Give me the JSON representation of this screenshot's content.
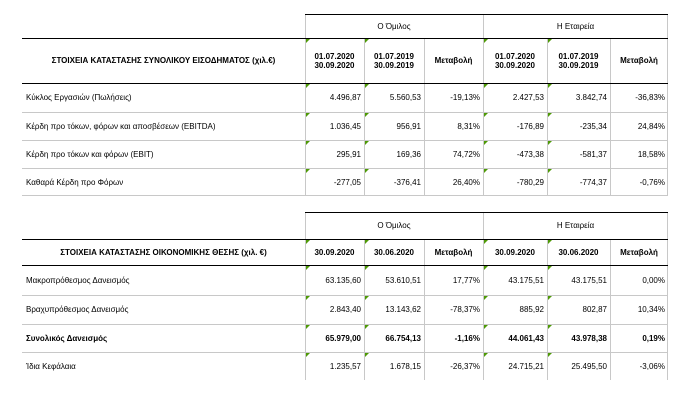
{
  "income": {
    "group_label": "Ο Όμιλος",
    "company_label": "Η Εταιρεία",
    "header_title": "ΣΤΟΙΧΕΙΑ ΚΑΤΑΣΤΑΣΗΣ ΣΥΝΟΛΙΚΟΥ ΕΙΣΟΔΗΜΑΤΟΣ (χιλ.€)",
    "col_heads": [
      {
        "a": "01.07.2020",
        "b": "30.09.2020"
      },
      {
        "a": "01.07.2019",
        "b": "30.09.2019"
      },
      {
        "a": "Μεταβολή",
        "b": ""
      },
      {
        "a": "01.07.2020",
        "b": "30.09.2020"
      },
      {
        "a": "01.07.2019",
        "b": "30.09.2019"
      },
      {
        "a": "Μεταβολή",
        "b": ""
      }
    ],
    "rows": [
      {
        "label": "Κύκλος Εργασιών (Πωλήσεις)",
        "v": [
          "4.496,87",
          "5.560,53",
          "-19,13%",
          "2.427,53",
          "3.842,74",
          "-36,83%"
        ]
      },
      {
        "label": "Κέρδη προ τόκων, φόρων και αποσβέσεων (EBITDA)",
        "v": [
          "1.036,45",
          "956,91",
          "8,31%",
          "-176,89",
          "-235,34",
          "24,84%"
        ]
      },
      {
        "label": "Κέρδη προ τόκων και φόρων (EBIT)",
        "v": [
          "295,91",
          "169,36",
          "74,72%",
          "-473,38",
          "-581,37",
          "18,58%"
        ]
      },
      {
        "label": "Καθαρά Κέρδη προ Φόρων",
        "v": [
          "-277,05",
          "-376,41",
          "26,40%",
          "-780,29",
          "-774,37",
          "-0,76%"
        ]
      }
    ]
  },
  "balance": {
    "group_label": "Ο Όμιλος",
    "company_label": "Η Εταιρεία",
    "header_title": "ΣΤΟΙΧΕΙΑ ΚΑΤΑΣΤΑΣΗΣ ΟΙΚΟΝΟΜΙΚΗΣ ΘΕΣΗΣ (χιλ. €)",
    "col_heads": [
      "30.09.2020",
      "30.06.2020",
      "Μεταβολή",
      "30.09.2020",
      "30.06.2020",
      "Μεταβολή"
    ],
    "rows": [
      {
        "label": "Μακροπρόθεσμος Δανεισμός",
        "bold": false,
        "v": [
          "63.135,60",
          "53.610,51",
          "17,77%",
          "43.175,51",
          "43.175,51",
          "0,00%"
        ]
      },
      {
        "label": "Βραχυπρόθεσμος Δανεισμός",
        "bold": false,
        "v": [
          "2.843,40",
          "13.143,62",
          "-78,37%",
          "885,92",
          "802,87",
          "10,34%"
        ]
      },
      {
        "label": "Συνολικός Δανεισμός",
        "bold": true,
        "v": [
          "65.979,00",
          "66.754,13",
          "-1,16%",
          "44.061,43",
          "43.978,38",
          "0,19%"
        ]
      },
      {
        "label": "Ίδια Κεφάλαια",
        "bold": false,
        "v": [
          "1.235,57",
          "1.678,15",
          "-26,37%",
          "24.715,21",
          "25.495,50",
          "-3,06%"
        ]
      }
    ]
  }
}
